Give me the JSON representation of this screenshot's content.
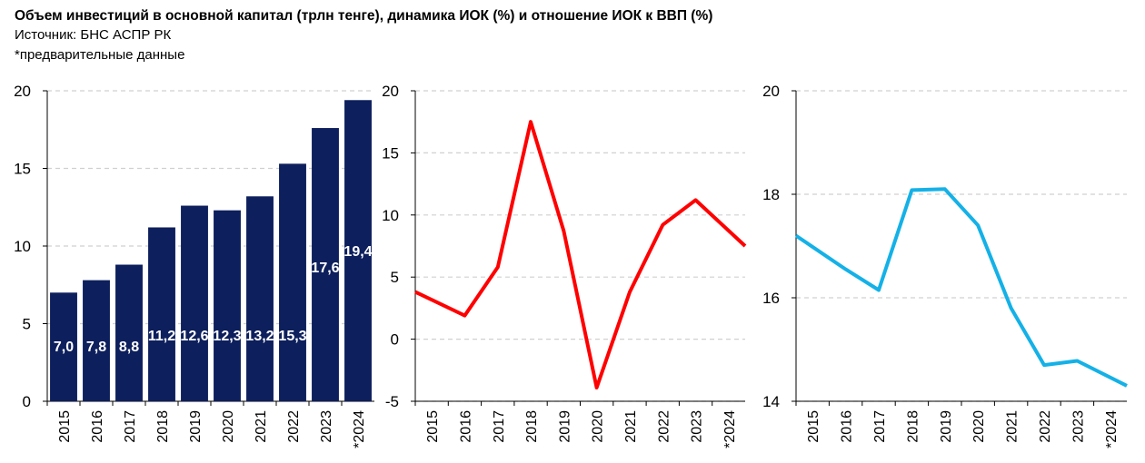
{
  "header": {
    "title": "Объем инвестиций в основной капитал (трлн тенге), динамика ИОК (%) и отношение ИОК к ВВП (%)",
    "source": "Источник: БНС АСПР РК",
    "note": "*предварительные данные"
  },
  "colors": {
    "bar": "#0d1f5c",
    "line_red": "#ff0000",
    "line_blue": "#14b1e7",
    "grid": "#d0d0d0"
  },
  "chart_data": [
    {
      "type": "bar",
      "categories": [
        "2015",
        "2016",
        "2017",
        "2018",
        "2019",
        "2020",
        "2021",
        "2022",
        "2023",
        "*2024"
      ],
      "values": [
        7.0,
        7.8,
        8.8,
        11.2,
        12.6,
        12.3,
        13.2,
        15.3,
        17.6,
        19.4
      ],
      "labels": [
        "7,0",
        "7,8",
        "8,8",
        "11,2",
        "12,6",
        "12,3",
        "13,2",
        "15,3",
        "17,6",
        "19,4"
      ],
      "ylim": [
        0,
        20
      ],
      "yticks": [
        0,
        5,
        10,
        15,
        20
      ],
      "grid": true
    },
    {
      "type": "line",
      "categories": [
        "2015",
        "2016",
        "2017",
        "2018",
        "2019",
        "2020",
        "2021",
        "2022",
        "2023",
        "*2024"
      ],
      "values": [
        3.8,
        1.9,
        5.8,
        17.5,
        8.7,
        -3.9,
        3.8,
        9.2,
        11.2,
        7.5
      ],
      "ylim": [
        -5,
        20
      ],
      "yticks": [
        -5,
        0,
        5,
        10,
        15,
        20
      ],
      "grid": true
    },
    {
      "type": "line",
      "categories": [
        "2015",
        "2016",
        "2017",
        "2018",
        "2019",
        "2020",
        "2021",
        "2022",
        "2023",
        "*2024"
      ],
      "values": [
        17.2,
        16.55,
        16.15,
        18.08,
        18.1,
        17.4,
        15.8,
        14.7,
        14.78,
        14.3
      ],
      "ylim": [
        14,
        20
      ],
      "yticks": [
        14,
        16,
        18,
        20
      ],
      "grid": true
    }
  ]
}
